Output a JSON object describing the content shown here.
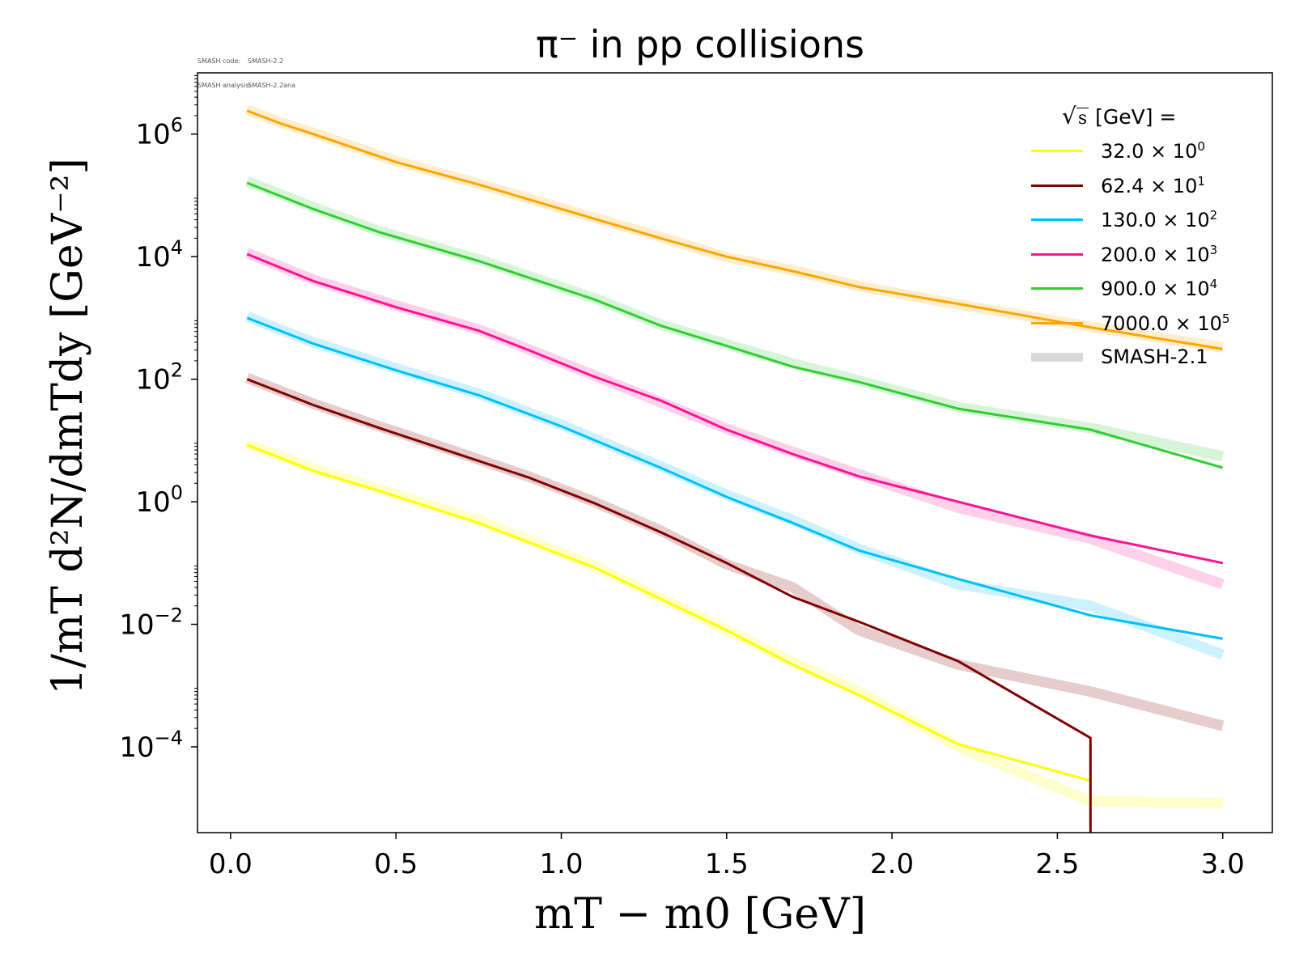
{
  "meta": {
    "code_key": "SMASH code:",
    "code_value": "SMASH-2.2",
    "analysis_key": "SMASH analysis:",
    "analysis_value": "SMASH-2.2ana"
  },
  "chart_data": {
    "type": "line",
    "title": "π⁻ in pp collisions",
    "xlabel": "mT − m0 [GeV]",
    "ylabel": "1/mT d²N/dmTdy [GeV⁻²]",
    "xlim": [
      -0.1,
      3.15
    ],
    "ylim_log10": [
      -5.4,
      7.0
    ],
    "yscale": "log",
    "x_ticks": [
      "0.0",
      "0.5",
      "1.0",
      "1.5",
      "2.0",
      "2.5",
      "3.0"
    ],
    "y_ticks": [
      {
        "base": "10",
        "exp": "6"
      },
      {
        "base": "10",
        "exp": "4"
      },
      {
        "base": "10",
        "exp": "2"
      },
      {
        "base": "10",
        "exp": "0"
      },
      {
        "base": "10",
        "exp": "−2"
      },
      {
        "base": "10",
        "exp": "−4"
      }
    ],
    "legend_title": "[GeV] =",
    "legend_placement": "top-right",
    "reference_label": "SMASH-2.1",
    "reference_color": "#d9d9d9",
    "series": [
      {
        "name": "32.0 × 10",
        "exp": "0",
        "color": "#ffff00",
        "x": [
          0.05,
          0.25,
          0.45,
          0.75,
          1.1,
          1.5,
          1.7,
          1.9,
          2.2,
          2.6
        ],
        "y": [
          8.5,
          3.2,
          1.5,
          0.45,
          0.085,
          0.008,
          0.0022,
          0.0007,
          0.00011,
          2.8e-05
        ],
        "ref_x": [
          0.05,
          0.25,
          0.45,
          0.75,
          1.1,
          1.5,
          1.7,
          1.9,
          2.2,
          2.6,
          3.0
        ],
        "ref_y": [
          8.8,
          3.5,
          1.6,
          0.5,
          0.09,
          0.008,
          0.0024,
          0.0008,
          0.0001,
          1.3e-05,
          1.2e-05
        ]
      },
      {
        "name": "62.4 × 10",
        "exp": "1",
        "color": "#800000",
        "x": [
          0.05,
          0.25,
          0.45,
          0.65,
          0.9,
          1.1,
          1.3,
          1.5,
          1.7,
          1.9,
          2.2,
          2.6,
          2.6
        ],
        "y": [
          100,
          38,
          16,
          7,
          2.5,
          0.95,
          0.32,
          0.1,
          0.028,
          0.011,
          0.0025,
          0.00014,
          3.5e-06
        ],
        "ref_x": [
          0.05,
          0.25,
          0.45,
          0.65,
          0.9,
          1.1,
          1.3,
          1.5,
          1.7,
          1.9,
          2.2,
          2.6,
          3.0
        ],
        "ref_y": [
          105,
          40,
          17,
          7.5,
          2.6,
          1.0,
          0.34,
          0.095,
          0.04,
          0.008,
          0.0022,
          0.0008,
          0.00022
        ]
      },
      {
        "name": "130.0 × 10",
        "exp": "2",
        "color": "#00bfff",
        "x": [
          0.05,
          0.25,
          0.5,
          0.75,
          1.0,
          1.3,
          1.5,
          1.7,
          1.9,
          2.2,
          2.6,
          3.0
        ],
        "y": [
          1000,
          380,
          140,
          55,
          17,
          3.6,
          1.2,
          0.45,
          0.16,
          0.055,
          0.014,
          0.0058
        ],
        "ref_x": [
          0.05,
          0.25,
          0.5,
          0.75,
          1.0,
          1.3,
          1.5,
          1.7,
          1.9,
          2.2,
          2.6,
          3.0
        ],
        "ref_y": [
          1050,
          400,
          150,
          58,
          18,
          3.8,
          1.3,
          0.5,
          0.17,
          0.045,
          0.02,
          0.0032
        ]
      },
      {
        "name": "200.0 × 10",
        "exp": "3",
        "color": "#ff1493",
        "x": [
          0.05,
          0.25,
          0.5,
          0.75,
          0.9,
          1.1,
          1.3,
          1.5,
          1.7,
          1.9,
          2.2,
          2.6,
          3.0
        ],
        "y": [
          11000,
          4000,
          1500,
          620,
          300,
          110,
          45,
          15,
          6,
          2.6,
          1.0,
          0.28,
          0.1
        ],
        "ref_x": [
          0.05,
          0.25,
          0.5,
          0.75,
          0.9,
          1.1,
          1.3,
          1.5,
          1.7,
          1.9,
          2.2,
          2.6,
          3.0
        ],
        "ref_y": [
          11500,
          4200,
          1600,
          650,
          310,
          115,
          42,
          15.5,
          6.5,
          2.8,
          0.8,
          0.25,
          0.045
        ]
      },
      {
        "name": "900.0 × 10",
        "exp": "4",
        "color": "#32cd32",
        "x": [
          0.05,
          0.25,
          0.45,
          0.75,
          1.1,
          1.3,
          1.5,
          1.7,
          1.9,
          2.2,
          2.6,
          3.0
        ],
        "y": [
          160000,
          60000,
          25000,
          8500,
          2000,
          750,
          350,
          160,
          90,
          33,
          15,
          3.6
        ],
        "ref_x": [
          0.05,
          0.25,
          0.45,
          0.75,
          1.1,
          1.3,
          1.5,
          1.7,
          1.9,
          2.2,
          2.6,
          3.0
        ],
        "ref_y": [
          170000,
          64000,
          26000,
          9000,
          2100,
          780,
          370,
          180,
          95,
          35,
          16,
          5.5
        ]
      },
      {
        "name": "7000.0 × 10",
        "exp": "5",
        "color": "#ffa500",
        "x": [
          0.05,
          0.15,
          0.25,
          0.5,
          0.75,
          1.0,
          1.3,
          1.5,
          1.7,
          1.9,
          2.2,
          2.6,
          3.0
        ],
        "y": [
          2400000,
          1500000,
          1000000,
          350000,
          150000,
          60000,
          20000,
          10000,
          5800,
          3200,
          1700,
          700,
          310
        ],
        "ref_x": [
          0.05,
          0.15,
          0.25,
          0.5,
          0.75,
          1.0,
          1.3,
          1.5,
          1.7,
          1.9,
          2.2,
          2.6,
          3.0
        ],
        "ref_y": [
          2500000,
          1550000,
          1050000,
          360000,
          155000,
          62000,
          21000,
          9800,
          6000,
          3300,
          1650,
          720,
          330
        ]
      }
    ]
  }
}
